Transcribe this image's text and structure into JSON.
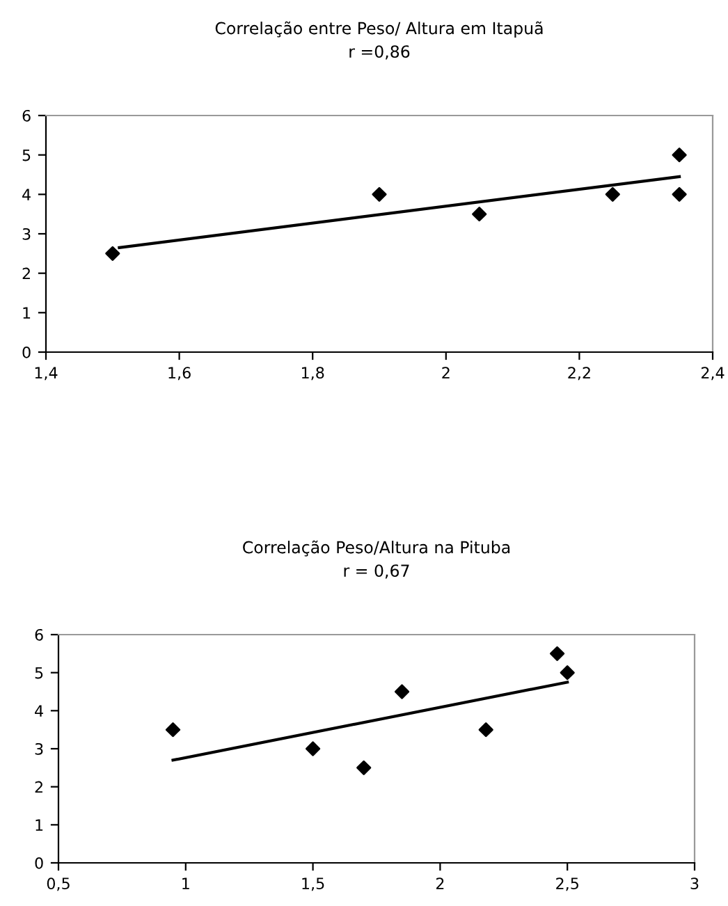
{
  "chart_data": [
    {
      "type": "scatter",
      "title": "Correlação entre Peso/ Altura em Itapuã",
      "subtitle": "r =0,86",
      "marker": "diamond",
      "grid": false,
      "legend": false,
      "xlim": [
        1.4,
        2.4
      ],
      "xticks": [
        {
          "value": 1.4,
          "label": "1,4"
        },
        {
          "value": 1.6,
          "label": "1,6"
        },
        {
          "value": 1.8,
          "label": "1,8"
        },
        2,
        {
          "value": 2.2,
          "label": "2,2"
        },
        {
          "value": 2.4,
          "label": "2,4"
        }
      ],
      "ylim": [
        0,
        6
      ],
      "yticks": [
        0,
        1,
        2,
        3,
        4,
        5,
        6
      ],
      "series": [
        {
          "color": "#000000",
          "x": [
            1.5,
            1.9,
            2.05,
            2.25,
            2.35,
            2.35
          ],
          "values": [
            2.5,
            4,
            3.5,
            4,
            5,
            4
          ]
        },
        {
          "type": "line",
          "color": "#000000",
          "marker": "none",
          "line_style": "solid",
          "x": [
            1.51,
            2.35
          ],
          "values": [
            2.65,
            4.45
          ]
        }
      ]
    },
    {
      "type": "scatter",
      "title": "Correlação Peso/Altura na Pituba",
      "subtitle": "r = 0,67",
      "marker": "diamond",
      "grid": false,
      "legend": false,
      "xlim": [
        0.5,
        3
      ],
      "xticks": [
        {
          "value": 0.5,
          "label": "0,5"
        },
        1,
        {
          "value": 1.5,
          "label": "1,5"
        },
        2,
        {
          "value": 2.5,
          "label": "2,5"
        },
        3
      ],
      "ylim": [
        0,
        6
      ],
      "yticks": [
        0,
        1,
        2,
        3,
        4,
        5,
        6
      ],
      "series": [
        {
          "color": "#000000",
          "x": [
            0.95,
            1.5,
            1.7,
            1.85,
            2.18,
            2.46,
            2.5
          ],
          "values": [
            3.5,
            3,
            2.5,
            4.5,
            3.5,
            5.5,
            5
          ]
        },
        {
          "type": "line",
          "color": "#000000",
          "marker": "none",
          "line_style": "solid",
          "x": [
            0.95,
            2.5
          ],
          "values": [
            2.7,
            4.75
          ]
        }
      ]
    }
  ]
}
